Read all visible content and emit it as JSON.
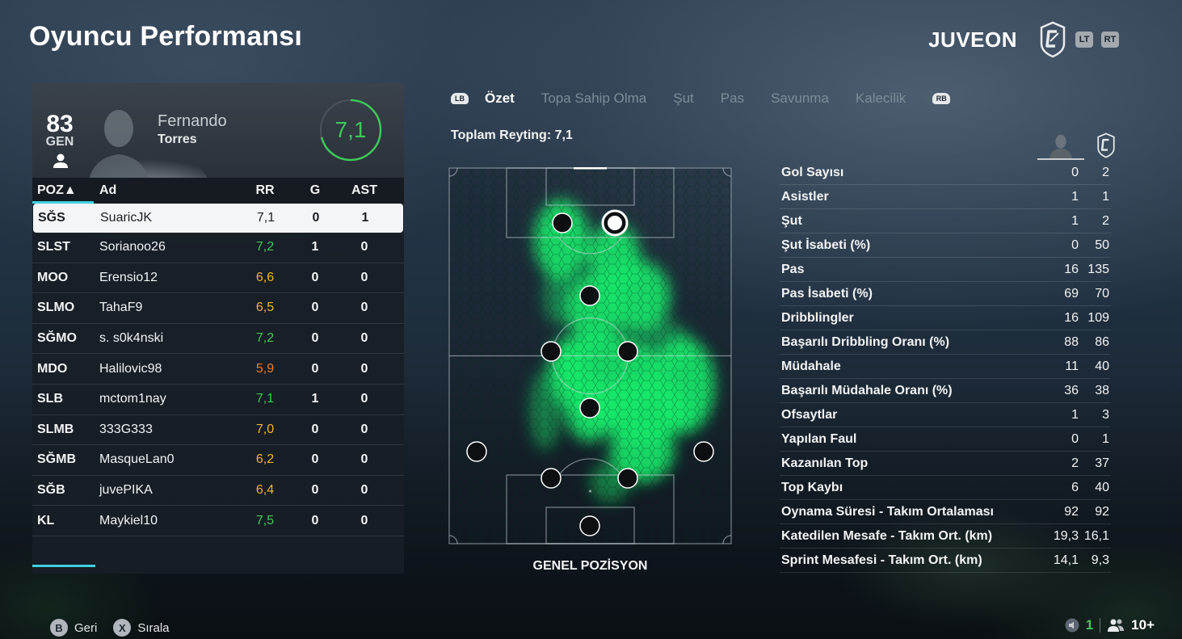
{
  "header": {
    "title": "Oyuncu Performansı",
    "team_name": "JUVEON",
    "lt_label": "LT",
    "rt_label": "RT"
  },
  "player": {
    "overall": "83",
    "overall_label": "GEN",
    "first_name": "Fernando",
    "last_name": "Torres",
    "rating": "7,1",
    "rating_ring_fraction": 0.71
  },
  "table": {
    "headers": {
      "poz": "POZ▲",
      "name": "Ad",
      "rr": "RR",
      "g": "G",
      "ast": "AST"
    },
    "rows": [
      {
        "poz": "SĞS",
        "name": "SuaricJK",
        "rr": "7,1",
        "g": "0",
        "ast": "1",
        "rr_color": "#1a1f25"
      },
      {
        "poz": "SLST",
        "name": "Sorianoo26",
        "rr": "7,2",
        "g": "1",
        "ast": "0",
        "rr_color": "#3ec95a"
      },
      {
        "poz": "MOO",
        "name": "Erensio12",
        "rr": "6,6",
        "g": "0",
        "ast": "0",
        "rr_color": "#f0b52a"
      },
      {
        "poz": "SLMO",
        "name": "TahaF9",
        "rr": "6,5",
        "g": "0",
        "ast": "0",
        "rr_color": "#f0b52a"
      },
      {
        "poz": "SĞMO",
        "name": "s. s0k4nski",
        "rr": "7,2",
        "g": "0",
        "ast": "0",
        "rr_color": "#3ec95a"
      },
      {
        "poz": "MDO",
        "name": "Halilovic98",
        "rr": "5,9",
        "g": "0",
        "ast": "0",
        "rr_color": "#ef7d2b"
      },
      {
        "poz": "SLB",
        "name": "mctom1nay",
        "rr": "7,1",
        "g": "1",
        "ast": "0",
        "rr_color": "#3ec95a"
      },
      {
        "poz": "SLMB",
        "name": "333G333",
        "rr": "7,0",
        "g": "0",
        "ast": "0",
        "rr_color": "#f0b52a"
      },
      {
        "poz": "SĞMB",
        "name": "MasqueLan0",
        "rr": "6,2",
        "g": "0",
        "ast": "0",
        "rr_color": "#f0b52a"
      },
      {
        "poz": "SĞB",
        "name": "juvePIKA",
        "rr": "6,4",
        "g": "0",
        "ast": "0",
        "rr_color": "#f0b52a"
      },
      {
        "poz": "KL",
        "name": "Maykiel10",
        "rr": "7,5",
        "g": "0",
        "ast": "0",
        "rr_color": "#3ec95a"
      }
    ]
  },
  "tabs": {
    "lb_label": "LB",
    "rb_label": "RB",
    "items": [
      "Özet",
      "Topa Sahip Olma",
      "Şut",
      "Pas",
      "Savunma",
      "Kalecilik"
    ],
    "active_index": 0
  },
  "summary": {
    "total_rating": "Toplam Reyting: 7,1",
    "pitch_label": "GENEL POZİSYON"
  },
  "stats": [
    {
      "label": "Gol Sayısı",
      "player": "0",
      "team": "2"
    },
    {
      "label": "Asistler",
      "player": "1",
      "team": "1"
    },
    {
      "label": "Şut",
      "player": "1",
      "team": "2"
    },
    {
      "label": "Şut İsabeti (%)",
      "player": "0",
      "team": "50"
    },
    {
      "label": "Pas",
      "player": "16",
      "team": "135"
    },
    {
      "label": "Pas İsabeti (%)",
      "player": "69",
      "team": "70"
    },
    {
      "label": "Dribblingler",
      "player": "16",
      "team": "109"
    },
    {
      "label": "Başarılı Dribbling Oranı (%)",
      "player": "88",
      "team": "86"
    },
    {
      "label": "Müdahale",
      "player": "11",
      "team": "40"
    },
    {
      "label": "Başarılı Müdahale Oranı (%)",
      "player": "36",
      "team": "38"
    },
    {
      "label": "Ofsaytlar",
      "player": "1",
      "team": "3"
    },
    {
      "label": "Yapılan Faul",
      "player": "0",
      "team": "1"
    },
    {
      "label": "Kazanılan Top",
      "player": "2",
      "team": "37"
    },
    {
      "label": "Top Kaybı",
      "player": "6",
      "team": "40"
    },
    {
      "label": "Oynama Süresi - Takım Ortalaması",
      "player": "92",
      "team": "92"
    },
    {
      "label": "Katedilen Mesafe - Takım Ort. (km)",
      "player": "19,3",
      "team": "16,1"
    },
    {
      "label": "Sprint Mesafesi - Takım Ort. (km)",
      "player": "14,1",
      "team": "9,3"
    }
  ],
  "footer": {
    "back_key": "B",
    "back_label": "Geri",
    "sort_key": "X",
    "sort_label": "Sırala",
    "mic_count": "1",
    "party_count": "10+"
  },
  "colors": {
    "accent_cyan": "#3fd0e0",
    "rating_green": "#3ec95a",
    "rating_yellow": "#f0b52a",
    "rating_orange": "#ef7d2b",
    "heat_green": "#19e86a"
  }
}
